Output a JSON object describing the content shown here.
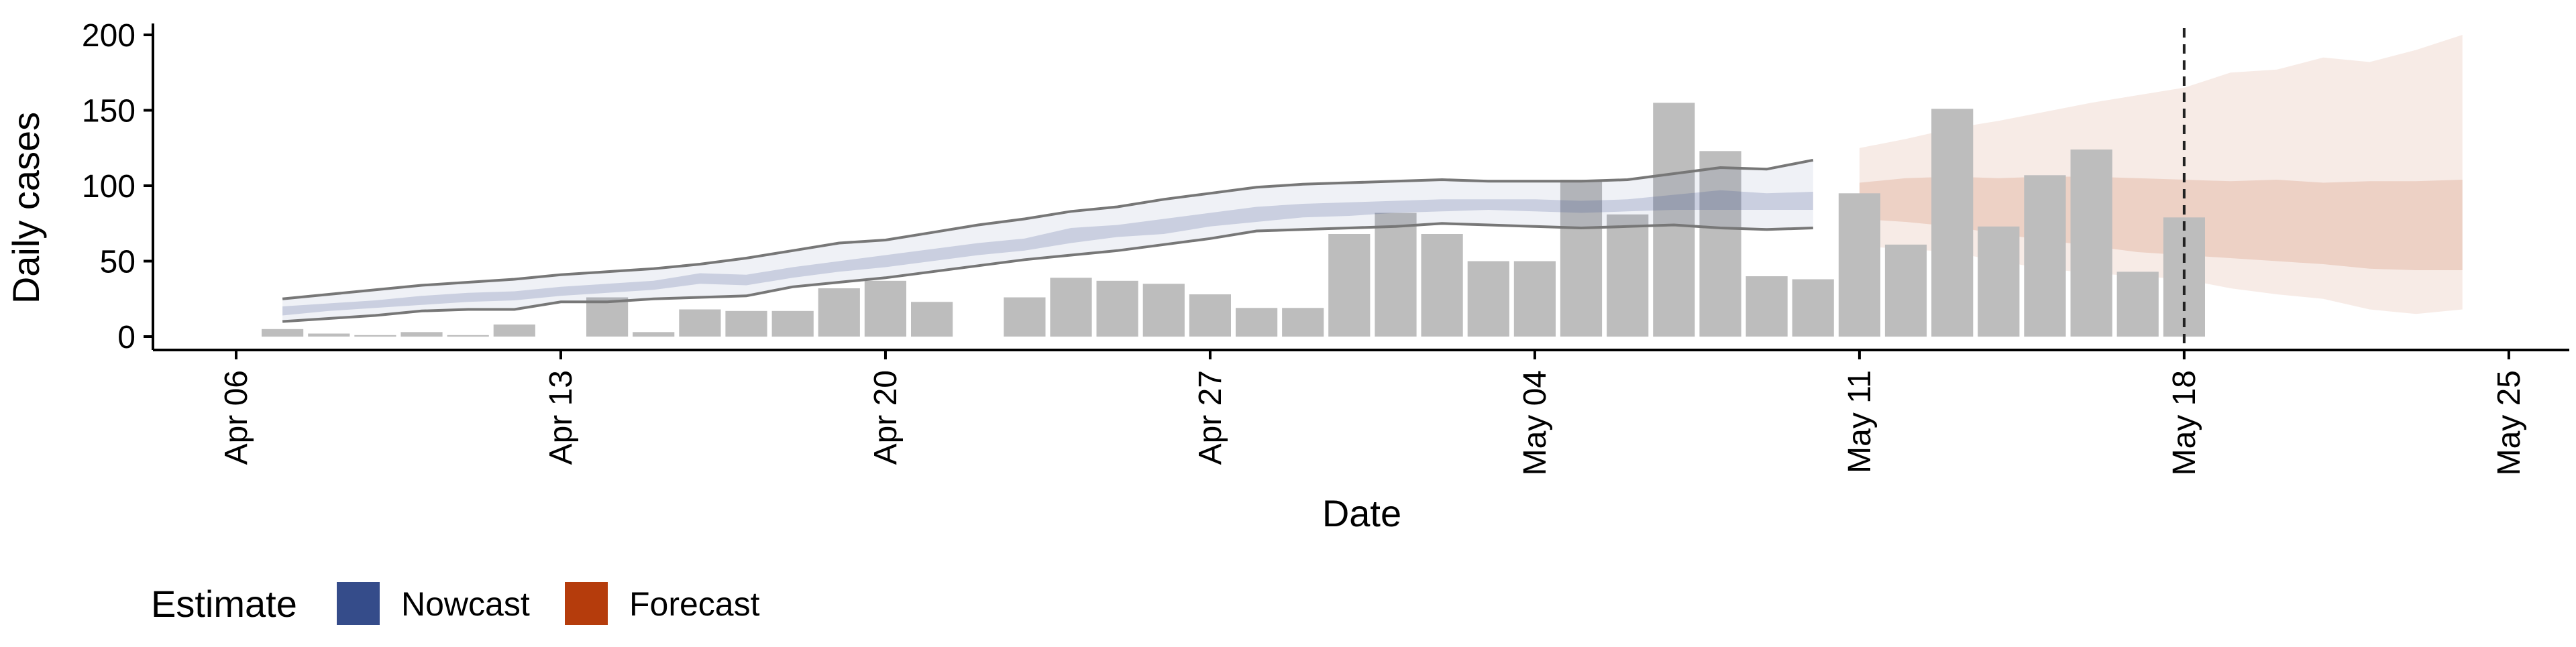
{
  "chart_data": {
    "type": "bar",
    "xlabel": "Date",
    "ylabel": "Daily cases",
    "xlim": [
      "2020-04-06",
      "2020-05-25"
    ],
    "ylim": [
      0,
      200
    ],
    "x_ticks": [
      "Apr 06",
      "Apr 13",
      "Apr 20",
      "Apr 27",
      "May 04",
      "May 11",
      "May 18",
      "May 25"
    ],
    "y_ticks": [
      0,
      50,
      100,
      150,
      200
    ],
    "vline_date": "2020-05-18",
    "colors": {
      "bar": "#bdbdbd",
      "nowcast": "#354c8a",
      "forecast": "#b53c0c",
      "ci_line": "#777777",
      "vline": "#222222"
    },
    "bars": [
      {
        "date": "2020-04-07",
        "value": 5
      },
      {
        "date": "2020-04-08",
        "value": 2
      },
      {
        "date": "2020-04-09",
        "value": 1
      },
      {
        "date": "2020-04-10",
        "value": 3
      },
      {
        "date": "2020-04-11",
        "value": 1
      },
      {
        "date": "2020-04-12",
        "value": 8
      },
      {
        "date": "2020-04-14",
        "value": 26
      },
      {
        "date": "2020-04-15",
        "value": 3
      },
      {
        "date": "2020-04-16",
        "value": 18
      },
      {
        "date": "2020-04-17",
        "value": 17
      },
      {
        "date": "2020-04-18",
        "value": 17
      },
      {
        "date": "2020-04-19",
        "value": 32
      },
      {
        "date": "2020-04-20",
        "value": 37
      },
      {
        "date": "2020-04-21",
        "value": 23
      },
      {
        "date": "2020-04-23",
        "value": 26
      },
      {
        "date": "2020-04-24",
        "value": 39
      },
      {
        "date": "2020-04-25",
        "value": 37
      },
      {
        "date": "2020-04-26",
        "value": 35
      },
      {
        "date": "2020-04-27",
        "value": 28
      },
      {
        "date": "2020-04-28",
        "value": 19
      },
      {
        "date": "2020-04-29",
        "value": 19
      },
      {
        "date": "2020-04-30",
        "value": 68
      },
      {
        "date": "2020-05-01",
        "value": 82
      },
      {
        "date": "2020-05-02",
        "value": 68
      },
      {
        "date": "2020-05-03",
        "value": 50
      },
      {
        "date": "2020-05-04",
        "value": 50
      },
      {
        "date": "2020-05-05",
        "value": 104
      },
      {
        "date": "2020-05-06",
        "value": 81
      },
      {
        "date": "2020-05-07",
        "value": 155
      },
      {
        "date": "2020-05-08",
        "value": 123
      },
      {
        "date": "2020-05-09",
        "value": 40
      },
      {
        "date": "2020-05-10",
        "value": 38
      },
      {
        "date": "2020-05-11",
        "value": 95
      },
      {
        "date": "2020-05-12",
        "value": 61
      },
      {
        "date": "2020-05-13",
        "value": 151
      },
      {
        "date": "2020-05-14",
        "value": 73
      },
      {
        "date": "2020-05-15",
        "value": 107
      },
      {
        "date": "2020-05-16",
        "value": 124
      },
      {
        "date": "2020-05-17",
        "value": 43
      },
      {
        "date": "2020-05-18",
        "value": 79
      }
    ],
    "series": [
      {
        "name": "Nowcast",
        "dates": [
          "2020-04-07",
          "2020-04-08",
          "2020-04-09",
          "2020-04-10",
          "2020-04-11",
          "2020-04-12",
          "2020-04-13",
          "2020-04-14",
          "2020-04-15",
          "2020-04-16",
          "2020-04-17",
          "2020-04-18",
          "2020-04-19",
          "2020-04-20",
          "2020-04-21",
          "2020-04-22",
          "2020-04-23",
          "2020-04-24",
          "2020-04-25",
          "2020-04-26",
          "2020-04-27",
          "2020-04-28",
          "2020-04-29",
          "2020-04-30",
          "2020-05-01",
          "2020-05-02",
          "2020-05-03",
          "2020-05-04",
          "2020-05-05",
          "2020-05-06",
          "2020-05-07",
          "2020-05-08",
          "2020-05-09",
          "2020-05-10"
        ],
        "lower90": [
          10,
          12,
          14,
          17,
          18,
          18,
          23,
          23,
          25,
          26,
          27,
          33,
          36,
          39,
          43,
          47,
          51,
          54,
          57,
          61,
          65,
          70,
          71,
          72,
          73,
          75,
          74,
          73,
          72,
          73,
          74,
          72,
          71,
          72
        ],
        "lower50": [
          14,
          17,
          19,
          21,
          23,
          24,
          27,
          29,
          31,
          35,
          34,
          39,
          43,
          46,
          50,
          54,
          57,
          62,
          66,
          68,
          73,
          76,
          79,
          80,
          82,
          83,
          84,
          83,
          82,
          83,
          84,
          84,
          84,
          84
        ],
        "upper50": [
          20,
          22,
          24,
          27,
          29,
          30,
          33,
          35,
          37,
          42,
          41,
          46,
          50,
          54,
          58,
          62,
          65,
          72,
          74,
          78,
          82,
          86,
          88,
          89,
          90,
          91,
          91,
          91,
          90,
          91,
          94,
          97,
          95,
          96
        ],
        "upper90": [
          25,
          28,
          31,
          34,
          36,
          38,
          41,
          43,
          45,
          48,
          52,
          57,
          62,
          64,
          69,
          74,
          78,
          83,
          86,
          91,
          95,
          99,
          101,
          102,
          103,
          104,
          103,
          103,
          103,
          104,
          108,
          112,
          111,
          117
        ]
      },
      {
        "name": "Forecast",
        "dates": [
          "2020-05-11",
          "2020-05-12",
          "2020-05-13",
          "2020-05-14",
          "2020-05-15",
          "2020-05-16",
          "2020-05-17",
          "2020-05-18",
          "2020-05-19",
          "2020-05-20",
          "2020-05-21",
          "2020-05-22",
          "2020-05-23",
          "2020-05-24"
        ],
        "lower90": [
          60,
          58,
          56,
          50,
          45,
          42,
          40,
          38,
          32,
          28,
          25,
          18,
          15,
          18
        ],
        "lower50": [
          78,
          76,
          73,
          68,
          64,
          60,
          56,
          54,
          52,
          50,
          48,
          45,
          44,
          44
        ],
        "upper50": [
          102,
          105,
          106,
          105,
          106,
          106,
          105,
          104,
          103,
          104,
          102,
          103,
          103,
          104
        ],
        "upper90": [
          125,
          131,
          138,
          143,
          149,
          155,
          160,
          165,
          175,
          177,
          185,
          182,
          190,
          200
        ]
      }
    ],
    "legend": {
      "title": "Estimate",
      "position": "bottom-left",
      "items": [
        "Nowcast",
        "Forecast"
      ]
    }
  }
}
